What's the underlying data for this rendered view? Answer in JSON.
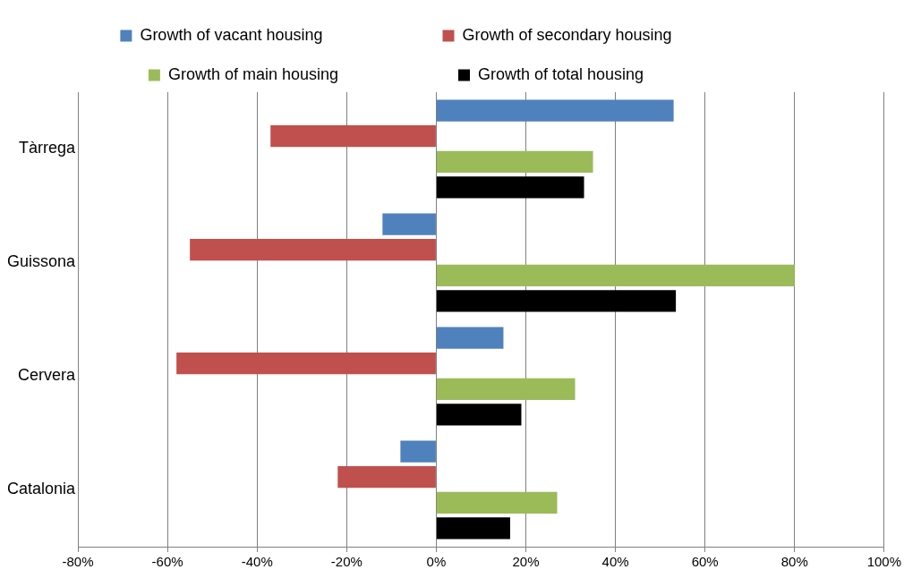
{
  "chart_data": {
    "type": "bar",
    "orientation": "horizontal",
    "categories": [
      "Tàrrega",
      "Guissona",
      "Cervera",
      "Catalonia"
    ],
    "series": [
      {
        "name": "Growth of vacant housing",
        "color": "#4f81bd",
        "values": [
          53,
          -12,
          15,
          -8
        ]
      },
      {
        "name": "Growth of secondary housing",
        "color": "#c0504d",
        "values": [
          -37,
          -55,
          -58,
          -22
        ]
      },
      {
        "name": "Growth of main housing",
        "color": "#9bbb59",
        "values": [
          35,
          80,
          31,
          27
        ]
      },
      {
        "name": "Growth of total housing",
        "color": "#000000",
        "values": [
          33,
          53.5,
          19,
          16.5
        ]
      }
    ],
    "xlim": [
      -80,
      100
    ],
    "xticks": [
      {
        "value": -80,
        "label": "-80%"
      },
      {
        "value": -60,
        "label": "-60%"
      },
      {
        "value": -40,
        "label": "-40%"
      },
      {
        "value": -20,
        "label": "-20%"
      },
      {
        "value": 0,
        "label": "0%"
      },
      {
        "value": 20,
        "label": "20%"
      },
      {
        "value": 40,
        "label": "40%"
      },
      {
        "value": 60,
        "label": "60%"
      },
      {
        "value": 80,
        "label": "80%"
      },
      {
        "value": 100,
        "label": "100%"
      }
    ],
    "grid": "x",
    "legend": "top"
  }
}
